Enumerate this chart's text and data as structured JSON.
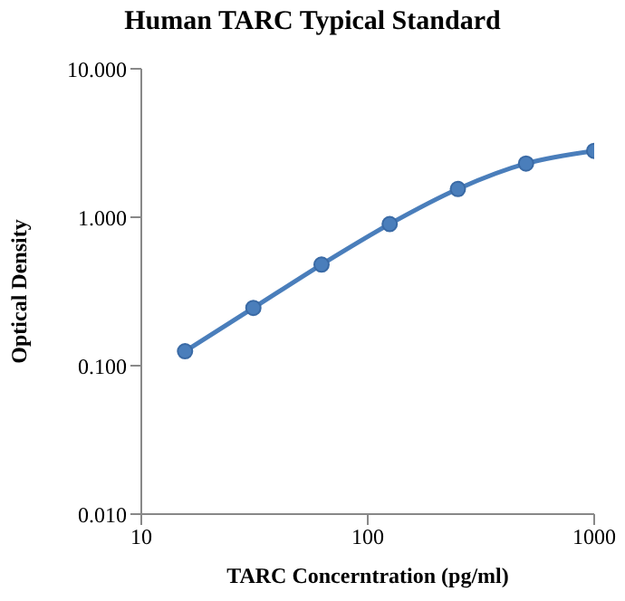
{
  "chart_data": {
    "type": "line",
    "title": "Human TARC Typical Standard",
    "xlabel": "TARC Concerntration (pg/ml)",
    "ylabel": "Optical Density",
    "x": [
      15.6,
      31.25,
      62.5,
      125,
      250,
      500,
      1000
    ],
    "series": [
      {
        "color": "#4a7ebb",
        "values": [
          0.125,
          0.245,
          0.48,
          0.9,
          1.55,
          2.3,
          2.8
        ]
      }
    ],
    "log": "xy",
    "xlim": [
      10,
      1000
    ],
    "xticks": [
      10,
      100,
      1000
    ],
    "ylim": [
      0.01,
      10
    ],
    "yticks": [
      {
        "value": 0.01,
        "label": "0.010"
      },
      {
        "value": 0.1,
        "label": "0.100"
      },
      {
        "value": 1,
        "label": "1.000"
      },
      {
        "value": 10,
        "label": "10.000"
      }
    ],
    "marker": "circle",
    "line_style": "solid"
  }
}
